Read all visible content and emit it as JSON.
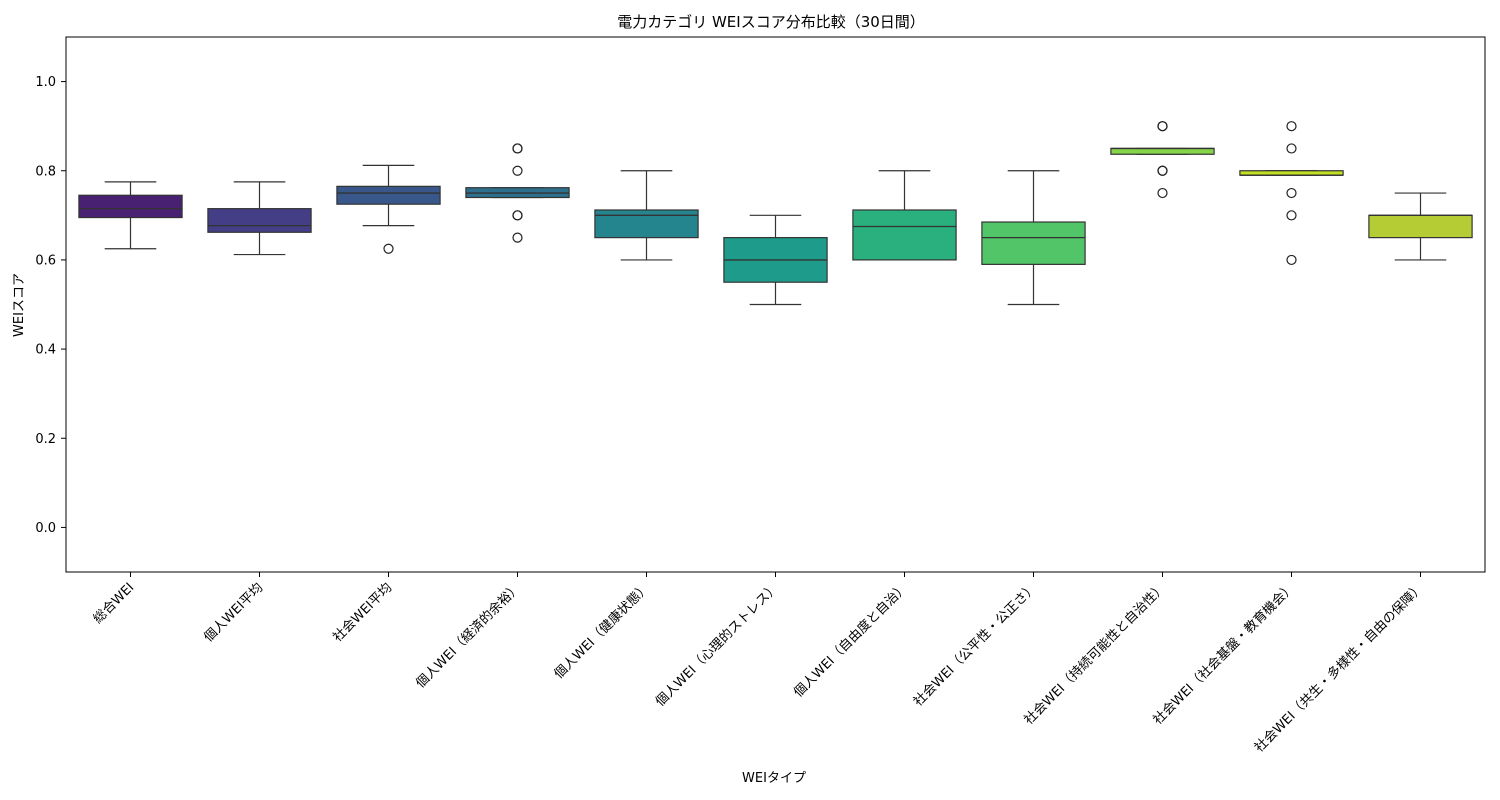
{
  "chart_data": {
    "type": "box",
    "title": "電力カテゴリ WEIスコア分布比較（30日間）",
    "xlabel": "WEIタイプ",
    "ylabel": "WEIスコア",
    "ylim": [
      -0.1,
      1.1
    ],
    "yticks": [
      "0.0",
      "0.2",
      "0.4",
      "0.6",
      "0.8",
      "1.0"
    ],
    "grid": false,
    "categories": [
      {
        "label": "総合WEI",
        "color": "#482173",
        "q1": 0.695,
        "median": 0.715,
        "q3": 0.745,
        "whisker_low": 0.625,
        "whisker_high": 0.775,
        "outliers": []
      },
      {
        "label": "個人WEI平均",
        "color": "#433e85",
        "q1": 0.662,
        "median": 0.677,
        "q3": 0.715,
        "whisker_low": 0.612,
        "whisker_high": 0.775,
        "outliers": []
      },
      {
        "label": "社会WEI平均",
        "color": "#38588c",
        "q1": 0.725,
        "median": 0.75,
        "q3": 0.765,
        "whisker_low": 0.677,
        "whisker_high": 0.812,
        "outliers": [
          0.625
        ]
      },
      {
        "label": "個人WEI（経済的余裕）",
        "color": "#2d708e",
        "q1": 0.74,
        "median": 0.75,
        "q3": 0.762,
        "whisker_low": 0.74,
        "whisker_high": 0.762,
        "outliers": [
          0.85,
          0.85,
          0.8,
          0.7,
          0.7,
          0.65
        ]
      },
      {
        "label": "個人WEI（健康状態）",
        "color": "#25858e",
        "q1": 0.65,
        "median": 0.7,
        "q3": 0.712,
        "whisker_low": 0.6,
        "whisker_high": 0.8,
        "outliers": []
      },
      {
        "label": "個人WEI（心理的ストレス）",
        "color": "#1e9b8a",
        "q1": 0.55,
        "median": 0.6,
        "q3": 0.65,
        "whisker_low": 0.5,
        "whisker_high": 0.7,
        "outliers": []
      },
      {
        "label": "個人WEI（自由度と自治）",
        "color": "#2ab07f",
        "q1": 0.6,
        "median": 0.675,
        "q3": 0.712,
        "whisker_low": 0.6,
        "whisker_high": 0.8,
        "outliers": []
      },
      {
        "label": "社会WEI（公平性・公正さ）",
        "color": "#52c569",
        "q1": 0.59,
        "median": 0.65,
        "q3": 0.685,
        "whisker_low": 0.5,
        "whisker_high": 0.8,
        "outliers": []
      },
      {
        "label": "社会WEI（持続可能性と自治性）",
        "color": "#86d549",
        "q1": 0.837,
        "median": 0.85,
        "q3": 0.85,
        "whisker_low": 0.837,
        "whisker_high": 0.85,
        "outliers": [
          0.9,
          0.9,
          0.8,
          0.8,
          0.75
        ]
      },
      {
        "label": "社会WEI（社会基盤・教育機会）",
        "color": "#c2df23",
        "q1": 0.79,
        "median": 0.79,
        "q3": 0.8,
        "whisker_low": 0.79,
        "whisker_high": 0.8,
        "outliers": [
          0.9,
          0.85,
          0.75,
          0.7,
          0.6
        ]
      },
      {
        "label": "社会WEI（共生・多様性・自由の保障）",
        "color": "#b5cc35",
        "q1": 0.65,
        "median": 0.7,
        "q3": 0.7,
        "whisker_low": 0.6,
        "whisker_high": 0.75,
        "outliers": []
      }
    ]
  }
}
